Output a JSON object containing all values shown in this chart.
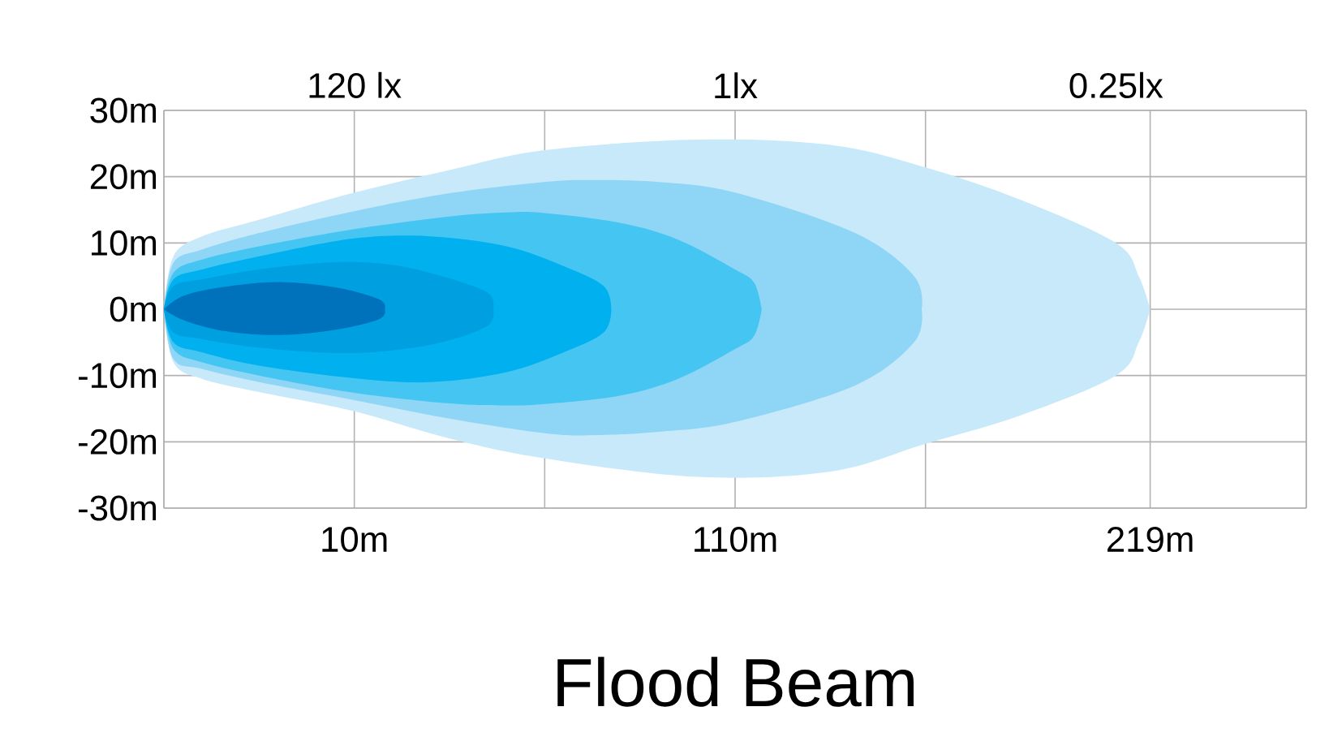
{
  "chart_data": {
    "type": "area",
    "title": "Flood Beam",
    "xlim": [
      -40,
      260
    ],
    "ylim": [
      -30,
      30
    ],
    "xticks": [
      {
        "value": -40,
        "label": null
      },
      {
        "value": 10,
        "label": "10m"
      },
      {
        "value": 60,
        "label": null
      },
      {
        "value": 110,
        "label": "110m"
      },
      {
        "value": 160,
        "label": null
      },
      {
        "value": 219,
        "label": "219m"
      },
      {
        "value": 260,
        "label": null
      }
    ],
    "yticks": [
      {
        "value": 30,
        "label": "30m"
      },
      {
        "value": 20,
        "label": "20m"
      },
      {
        "value": 10,
        "label": "10m"
      },
      {
        "value": 0,
        "label": "0m"
      },
      {
        "value": -10,
        "label": "-10m"
      },
      {
        "value": -20,
        "label": "-20m"
      },
      {
        "value": -30,
        "label": "-30m"
      }
    ],
    "annotations": [
      "120 lx",
      "1lx",
      "0.25lx"
    ],
    "grid": true,
    "series": [
      {
        "color": "#c8e9fa",
        "x": [
          -40,
          -37.5,
          -30,
          -15,
          10,
          35,
          60,
          100,
          135,
          160,
          185,
          210,
          216,
          219
        ],
        "values": [
          0,
          8,
          11,
          13.5,
          17.6,
          21,
          24,
          25.6,
          24.8,
          21.4,
          16.5,
          10,
          5,
          0
        ]
      },
      {
        "color": "#c8e9fa",
        "x": [
          -40,
          -37.5,
          -30,
          -15,
          10,
          35,
          60,
          100,
          135,
          160,
          185,
          210,
          216,
          219
        ],
        "values": [
          0,
          -8,
          -10.5,
          -12.5,
          -15.4,
          -19.5,
          -22.5,
          -25.3,
          -24.5,
          -20.3,
          -16,
          -10,
          -5,
          0
        ]
      },
      {
        "color": "#8fd5f6",
        "x": [
          -40,
          -37.5,
          -30,
          -15,
          10,
          35,
          60,
          72.5,
          90,
          110,
          141.5,
          157,
          159
        ],
        "values": [
          0,
          7,
          9,
          11.5,
          14.8,
          17.5,
          19.2,
          19.5,
          19.2,
          17.6,
          11.5,
          5,
          0
        ]
      },
      {
        "color": "#8fd5f6",
        "x": [
          -40,
          -37.5,
          -30,
          -15,
          10,
          35,
          60,
          72.5,
          90,
          110,
          141.5,
          157,
          159
        ],
        "values": [
          0,
          -7.5,
          -9,
          -11,
          -13.7,
          -16.5,
          -18.7,
          -19,
          -18.5,
          -17,
          -11.5,
          -5,
          0
        ]
      },
      {
        "color": "#45c6f2",
        "x": [
          -40,
          -37.5,
          -30,
          -15,
          10,
          35,
          50,
          60,
          80,
          95,
          110,
          115,
          117
        ],
        "values": [
          0,
          5.5,
          7.5,
          9.5,
          12.1,
          14,
          14.6,
          14.5,
          13,
          10.5,
          6,
          4,
          0
        ]
      },
      {
        "color": "#45c6f2",
        "x": [
          -40,
          -37.5,
          -30,
          -15,
          10,
          35,
          50,
          60,
          80,
          95,
          110,
          115,
          117
        ],
        "values": [
          0,
          -6,
          -8,
          -10,
          -12.6,
          -14.2,
          -14.5,
          -14.3,
          -13,
          -10.5,
          -6,
          -4,
          0
        ]
      },
      {
        "color": "#00b0ef",
        "x": [
          -40,
          -37.5,
          -30,
          -15,
          10,
          30,
          50,
          65,
          75.5,
          77.5
        ],
        "values": [
          0,
          4.5,
          6,
          8,
          10.7,
          11,
          9.5,
          6.5,
          3.5,
          0
        ]
      },
      {
        "color": "#00b0ef",
        "x": [
          -40,
          -37.5,
          -30,
          -15,
          10,
          30,
          50,
          65,
          75.5,
          77.5
        ],
        "values": [
          0,
          -5,
          -6.5,
          -8.5,
          -10.4,
          -11,
          -9.5,
          -6.5,
          -3.5,
          0
        ]
      },
      {
        "color": "#009fe0",
        "x": [
          -40,
          -37.5,
          -30,
          -15,
          5,
          20,
          33.5,
          45,
          46.5
        ],
        "values": [
          0,
          3.5,
          4.5,
          6,
          7.1,
          6.7,
          4.9,
          2.5,
          0
        ]
      },
      {
        "color": "#009fe0",
        "x": [
          -40,
          -37.5,
          -30,
          -15,
          5,
          20,
          33.5,
          45,
          46.5
        ],
        "values": [
          0,
          -3.5,
          -4.5,
          -5.8,
          -6.6,
          -6.2,
          -4.9,
          -2.5,
          0
        ]
      },
      {
        "color": "#0071bb",
        "x": [
          -40,
          -35,
          -25,
          -10,
          5,
          16.5,
          18
        ],
        "values": [
          0,
          2,
          3.3,
          4.1,
          3.3,
          1.5,
          0
        ]
      },
      {
        "color": "#0071bb",
        "x": [
          -40,
          -35,
          -25,
          -10,
          5,
          16.5,
          18
        ],
        "values": [
          0,
          -1.6,
          -3.2,
          -3.9,
          -3.1,
          -1.5,
          0
        ]
      }
    ]
  }
}
